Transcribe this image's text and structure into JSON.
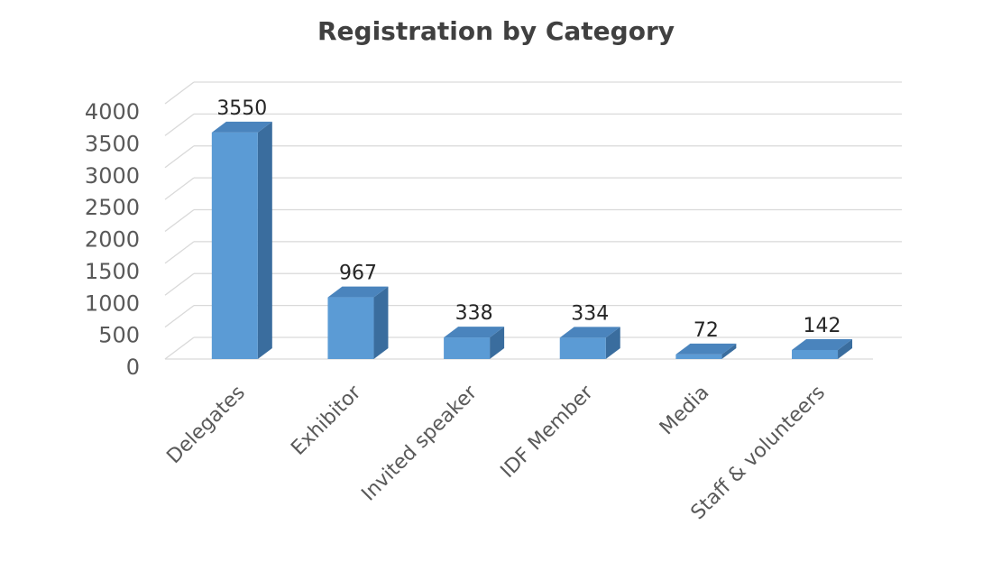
{
  "chart_data": {
    "type": "bar",
    "title": "Registration by Category",
    "categories": [
      "Delegates",
      "Exhibitor",
      "Invited speaker",
      "IDF Member",
      "Media",
      "Staff & volunteers"
    ],
    "values": [
      3550,
      967,
      338,
      334,
      72,
      142
    ],
    "color": "#5b9bd5",
    "ylim": [
      0,
      4000
    ],
    "yticks": [
      0,
      500,
      1000,
      1500,
      2000,
      2500,
      3000,
      3500,
      4000
    ],
    "grid": true
  }
}
